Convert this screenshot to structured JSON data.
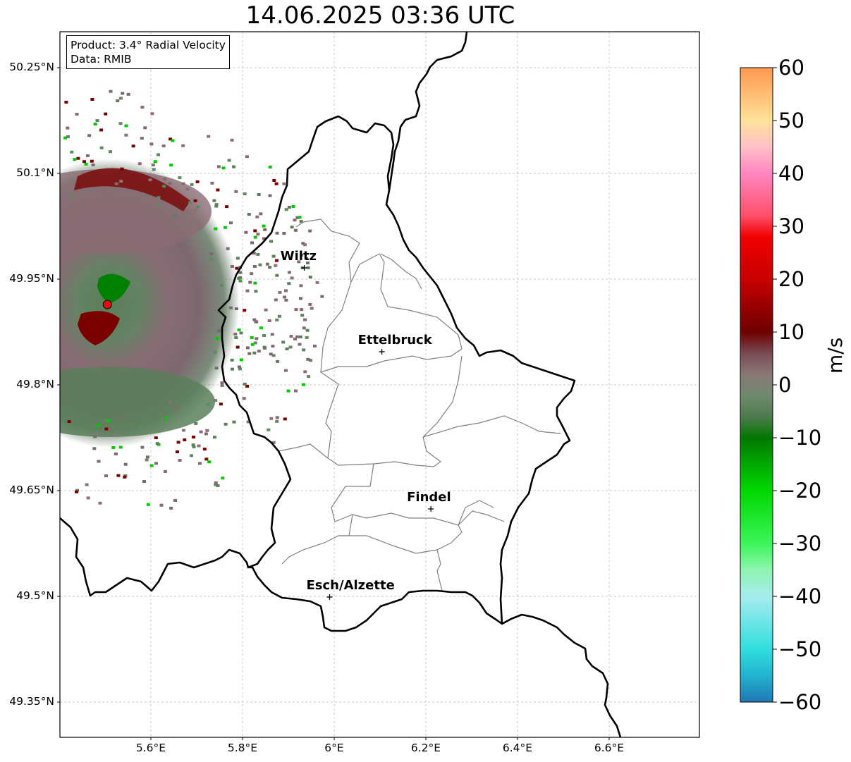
{
  "title": "14.06.2025 03:36 UTC",
  "info": {
    "product": "Product: 3.4° Radial Velocity",
    "data_source": "Data: RMIB"
  },
  "lat_ticks": [
    "50.25°N",
    "50.1°N",
    "49.95°N",
    "49.8°N",
    "49.65°N",
    "49.5°N",
    "49.35°N"
  ],
  "lon_ticks": [
    "5.6°E",
    "5.8°E",
    "6°E",
    "6.2°E",
    "6.4°E",
    "6.6°E"
  ],
  "cities": [
    {
      "name": "Wiltz",
      "lon": 5.935,
      "lat": 49.966
    },
    {
      "name": "Ettelbruck",
      "lon": 6.104,
      "lat": 49.847
    },
    {
      "name": "Findel",
      "lon": 6.211,
      "lat": 49.624
    },
    {
      "name": "Esch/Alzette",
      "lon": 5.99,
      "lat": 49.499
    }
  ],
  "radar_site": {
    "lon": 5.505,
    "lat": 49.914
  },
  "colorbar": {
    "unit": "m/s",
    "min": -60,
    "max": 60,
    "ticks": [
      "60",
      "50",
      "40",
      "30",
      "20",
      "10",
      "0",
      "−10",
      "−20",
      "−30",
      "−40",
      "−50",
      "−60"
    ],
    "color_stops": [
      {
        "value": -60,
        "color": "#1f77b4"
      },
      {
        "value": -55,
        "color": "#22b3cf"
      },
      {
        "value": -50,
        "color": "#30dede"
      },
      {
        "value": -40,
        "color": "#a8ecef"
      },
      {
        "value": -35,
        "color": "#8ef5b0"
      },
      {
        "value": -30,
        "color": "#3cf55a"
      },
      {
        "value": -20,
        "color": "#00d800"
      },
      {
        "value": -10,
        "color": "#007800"
      },
      {
        "value": -6,
        "color": "#4f7a4f"
      },
      {
        "value": -2,
        "color": "#6e8a6e"
      },
      {
        "value": 2,
        "color": "#8a7878"
      },
      {
        "value": 6,
        "color": "#7a4a55"
      },
      {
        "value": 10,
        "color": "#6e0000"
      },
      {
        "value": 20,
        "color": "#c80000"
      },
      {
        "value": 28,
        "color": "#f00000"
      },
      {
        "value": 32,
        "color": "#ff4f6a"
      },
      {
        "value": 40,
        "color": "#ff86c0"
      },
      {
        "value": 45,
        "color": "#ffc0c8"
      },
      {
        "value": 50,
        "color": "#ffe39a"
      },
      {
        "value": 60,
        "color": "#ff9850"
      }
    ]
  },
  "colors": {
    "border": "#000000",
    "canton_lines": "#808080",
    "grid": "#b0b0b0",
    "echo_green": "#5c7f5c",
    "echo_mauve": "#8a6a72",
    "echo_red": "#7a0000",
    "echo_bright_green": "#00cc00",
    "radar_dot": "#e01010"
  }
}
